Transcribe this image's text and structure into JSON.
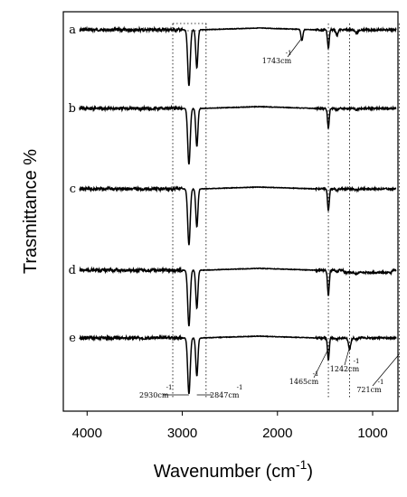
{
  "chart_data": {
    "type": "line",
    "xlabel": "Wavenumber (cm",
    "xlabel_sup": "-1",
    "xlabel_suffix": ")",
    "ylabel": "Trasmittance %",
    "xlim": [
      4100,
      700
    ],
    "x_ticks": [
      4000,
      3000,
      2000,
      1000
    ],
    "x_tick_labels": [
      "4000",
      "3000",
      "2000",
      "1000"
    ],
    "series": [
      {
        "name": "a",
        "baseline_y": 1.0
      },
      {
        "name": "b",
        "baseline_y": 1.0
      },
      {
        "name": "c",
        "baseline_y": 1.0
      },
      {
        "name": "d",
        "baseline_y": 1.0
      },
      {
        "name": "e",
        "baseline_y": 1.0
      }
    ],
    "peaks": [
      {
        "x": 2930
      },
      {
        "x": 2847
      },
      {
        "x": 1743
      },
      {
        "x": 1465
      },
      {
        "x": 1242
      },
      {
        "x": 721
      }
    ],
    "reference_lines_x": [
      3100,
      2750,
      1465,
      1242,
      721
    ],
    "annotations": [
      {
        "text": "1743cm",
        "sup": "-1"
      },
      {
        "text": "2930cm",
        "sup": "-1"
      },
      {
        "text": "2847cm",
        "sup": "-1"
      },
      {
        "text": "1465cm",
        "sup": "-1"
      },
      {
        "text": "1242cm",
        "sup": "-1"
      },
      {
        "text": "721cm",
        "sup": "-1"
      }
    ]
  }
}
